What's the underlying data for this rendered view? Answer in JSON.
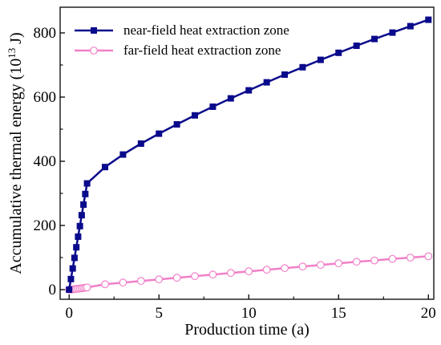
{
  "chart_data": {
    "type": "line",
    "xlabel": "Production time (a)",
    "ylabel_main": "Accumulative thermal energy (10",
    "ylabel_sup": "13",
    "ylabel_tail": " J)",
    "xlim": [
      -0.5,
      20.3
    ],
    "ylim": [
      -30,
      880
    ],
    "xticks": [
      "0",
      "5",
      "10",
      "15",
      "20"
    ],
    "xtick_values": [
      0,
      5,
      10,
      15,
      20
    ],
    "yticks": [
      "0",
      "200",
      "400",
      "600",
      "800"
    ],
    "ytick_values": [
      0,
      200,
      400,
      600,
      800
    ],
    "grid": false,
    "legend_position": "top-left",
    "series": [
      {
        "name": "near-field heat extraction zone",
        "color": "#0a0a8c",
        "marker": "square-filled",
        "x": [
          0,
          0.1,
          0.2,
          0.3,
          0.4,
          0.5,
          0.6,
          0.7,
          0.8,
          0.9,
          1,
          2,
          3,
          4,
          5,
          6,
          7,
          8,
          9,
          10,
          11,
          12,
          13,
          14,
          15,
          16,
          17,
          18,
          19,
          20
        ],
        "y": [
          0,
          33,
          66,
          99,
          132,
          165,
          198,
          232,
          265,
          298,
          331,
          382,
          421,
          455,
          486,
          515,
          543,
          570,
          596,
          621,
          646,
          670,
          693,
          716,
          738,
          760,
          781,
          801,
          821,
          841
        ]
      },
      {
        "name": "far-field heat extraction zone",
        "color": "#f080c8",
        "marker": "circle-open",
        "x": [
          0,
          0.1,
          0.2,
          0.3,
          0.4,
          0.5,
          0.6,
          0.7,
          0.8,
          0.9,
          1,
          2,
          3,
          4,
          5,
          6,
          7,
          8,
          9,
          10,
          11,
          12,
          13,
          14,
          15,
          16,
          17,
          18,
          19,
          20
        ],
        "y": [
          0,
          0.5,
          1,
          1.6,
          2.2,
          2.9,
          3.6,
          4.4,
          5.2,
          6,
          6.8,
          16.8,
          22,
          27,
          32,
          37,
          42,
          47,
          52,
          57,
          62,
          67,
          72,
          77,
          82,
          87,
          91,
          96,
          100,
          104
        ]
      }
    ]
  }
}
